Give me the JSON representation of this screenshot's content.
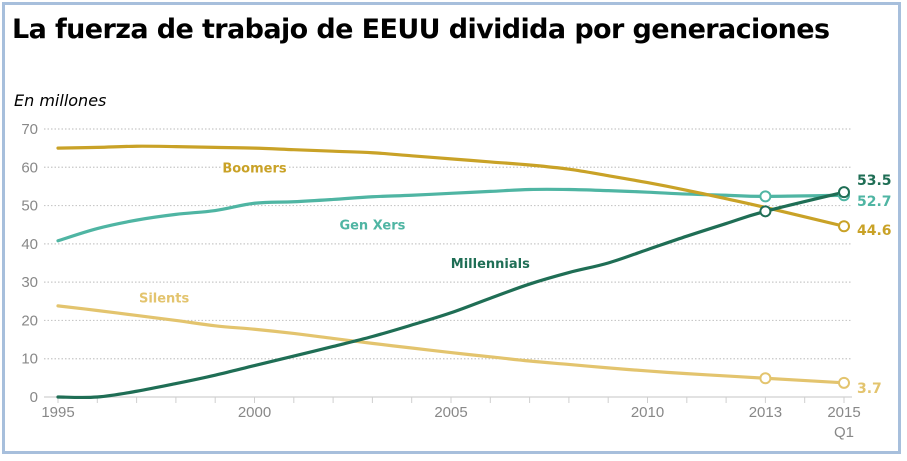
{
  "title": "La fuerza de trabajo de EEUU dividida por generaciones",
  "subtitle": "En millones",
  "chart_data": {
    "type": "line",
    "title": "La fuerza de trabajo de EEUU dividida por generaciones",
    "subtitle": "En millones",
    "xlabel": "",
    "ylabel": "En millones",
    "xlim": [
      1995,
      2015
    ],
    "ylim": [
      0,
      70
    ],
    "grid": true,
    "y_ticks": [
      0,
      10,
      20,
      30,
      40,
      50,
      60,
      70
    ],
    "x_ticks": [
      {
        "value": 1995,
        "label": "1995"
      },
      {
        "value": 2000,
        "label": "2000"
      },
      {
        "value": 2005,
        "label": "2005"
      },
      {
        "value": 2010,
        "label": "2010"
      },
      {
        "value": 2013,
        "label": "2013"
      },
      {
        "value": 2015,
        "label": "2015",
        "sublabel": "Q1"
      }
    ],
    "legend": "inline-labels",
    "series": [
      {
        "name": "Boomers",
        "color": "#c9a227",
        "x": [
          1995,
          1996,
          1997,
          1998,
          1999,
          2000,
          2001,
          2002,
          2003,
          2004,
          2005,
          2006,
          2007,
          2008,
          2009,
          2010,
          2011,
          2012,
          2013,
          2015
        ],
        "values": [
          65.0,
          65.2,
          65.5,
          65.4,
          65.2,
          65.0,
          64.6,
          64.2,
          63.8,
          63.0,
          62.2,
          61.4,
          60.6,
          59.5,
          57.8,
          56.0,
          54.0,
          51.8,
          49.5,
          44.6
        ],
        "end_label": "44.6",
        "markers_at": [
          2015
        ]
      },
      {
        "name": "Gen Xers",
        "color": "#4fb5a3",
        "x": [
          1995,
          1996,
          1997,
          1998,
          1999,
          2000,
          2001,
          2002,
          2003,
          2004,
          2005,
          2006,
          2007,
          2008,
          2009,
          2010,
          2011,
          2012,
          2013,
          2015
        ],
        "values": [
          40.8,
          44.0,
          46.2,
          47.7,
          48.7,
          50.6,
          51.0,
          51.6,
          52.3,
          52.7,
          53.2,
          53.7,
          54.2,
          54.2,
          53.9,
          53.5,
          53.0,
          52.7,
          52.4,
          52.7
        ],
        "end_label": "52.7",
        "markers_at": [
          2013,
          2015
        ]
      },
      {
        "name": "Millennials",
        "color": "#1f6e55",
        "x": [
          1995,
          1996,
          1997,
          1998,
          1999,
          2000,
          2001,
          2002,
          2003,
          2004,
          2005,
          2006,
          2007,
          2008,
          2009,
          2010,
          2011,
          2012,
          2013,
          2015
        ],
        "values": [
          0.0,
          0.0,
          1.5,
          3.5,
          5.7,
          8.2,
          10.7,
          13.2,
          15.8,
          18.8,
          22.0,
          25.8,
          29.5,
          32.5,
          35.0,
          38.5,
          42.0,
          45.3,
          48.5,
          53.5
        ],
        "end_label": "53.5",
        "markers_at": [
          2013,
          2015
        ]
      },
      {
        "name": "Silents",
        "color": "#e3c46e",
        "x": [
          1995,
          1996,
          1997,
          1998,
          1999,
          2000,
          2001,
          2002,
          2003,
          2004,
          2005,
          2006,
          2007,
          2008,
          2009,
          2010,
          2011,
          2012,
          2013,
          2015
        ],
        "values": [
          23.8,
          22.6,
          21.3,
          20.0,
          18.6,
          17.7,
          16.6,
          15.3,
          14.0,
          12.8,
          11.6,
          10.5,
          9.4,
          8.5,
          7.6,
          6.8,
          6.1,
          5.5,
          4.9,
          3.7
        ],
        "end_label": "3.7",
        "markers_at": [
          2013,
          2015
        ]
      }
    ],
    "annotations": [
      {
        "text": "Boomers",
        "series": "Boomers",
        "x": 2000,
        "y": 60
      },
      {
        "text": "Gen Xers",
        "series": "Gen Xers",
        "x": 2003,
        "y": 45
      },
      {
        "text": "Millennials",
        "series": "Millennials",
        "x": 2006,
        "y": 35
      },
      {
        "text": "Silents",
        "series": "Silents",
        "x": 1997.7,
        "y": 26
      }
    ]
  }
}
